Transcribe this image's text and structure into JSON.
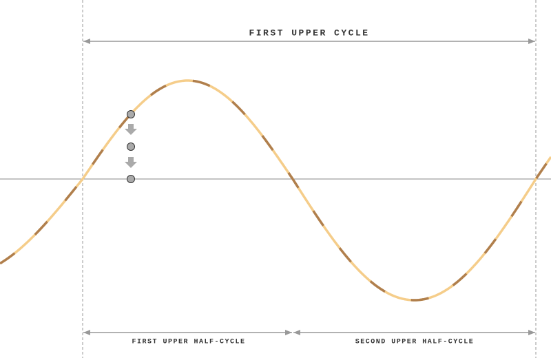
{
  "labels": {
    "cycle": "FIRST UPPER CYCLE",
    "half_cycle_1": "FIRST UPPER HALF-CYCLE",
    "half_cycle_2": "SECOND UPPER HALF-CYCLE"
  }
}
